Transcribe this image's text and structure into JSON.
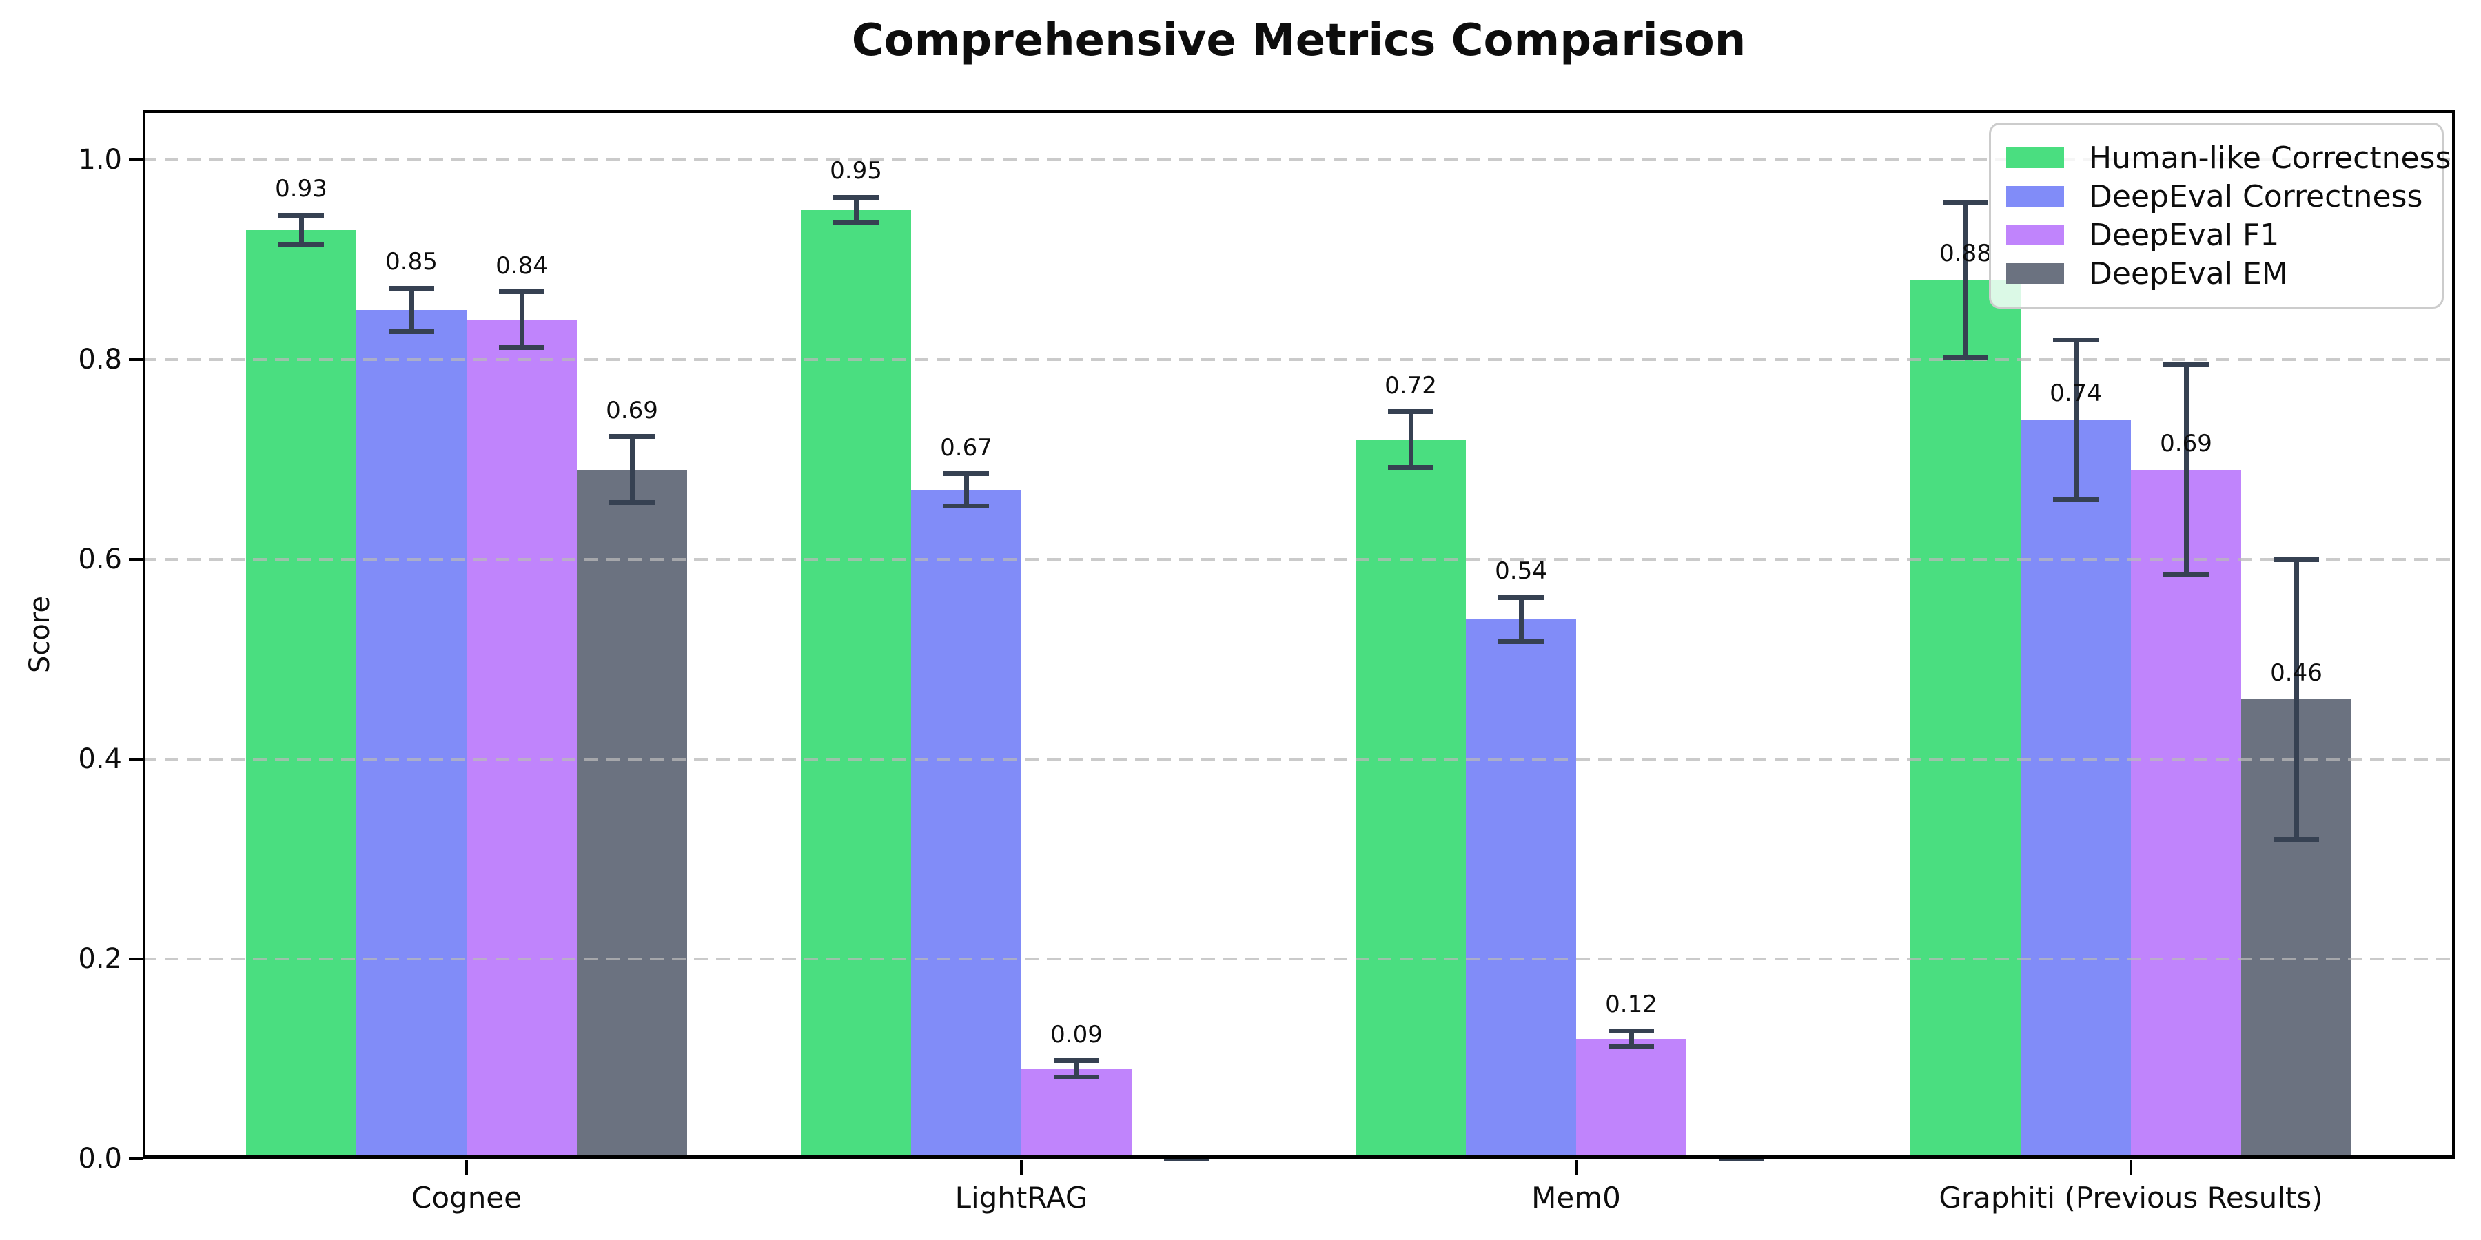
{
  "chart_data": {
    "type": "bar",
    "title": "Comprehensive Metrics Comparison",
    "ylabel": "Score",
    "xlabel": "",
    "categories": [
      "Cognee",
      "LightRAG",
      "Mem0",
      "Graphiti (Previous Results)"
    ],
    "series": [
      {
        "name": "Human-like Correctness",
        "color": "#4ade80",
        "values": [
          0.93,
          0.95,
          0.72,
          0.88
        ],
        "errors": [
          0.015,
          0.013,
          0.028,
          0.077
        ],
        "labels": [
          "0.93",
          "0.95",
          "0.72",
          "0.88"
        ]
      },
      {
        "name": "DeepEval Correctness",
        "color": "#818cf8",
        "values": [
          0.85,
          0.67,
          0.54,
          0.74
        ],
        "errors": [
          0.022,
          0.016,
          0.022,
          0.08
        ],
        "labels": [
          "0.85",
          "0.67",
          "0.54",
          "0.74"
        ]
      },
      {
        "name": "DeepEval F1",
        "color": "#c084fc",
        "values": [
          0.84,
          0.09,
          0.12,
          0.69
        ],
        "errors": [
          0.028,
          0.008,
          0.008,
          0.105
        ],
        "labels": [
          "0.84",
          "0.09",
          "0.12",
          "0.69"
        ]
      },
      {
        "name": "DeepEval EM",
        "color": "#6b7280",
        "values": [
          0.69,
          0.0,
          0.0,
          0.46
        ],
        "errors": [
          0.033,
          0.0,
          0.0,
          0.14
        ],
        "labels": [
          "0.69",
          "",
          "",
          "0.46"
        ]
      }
    ],
    "yticks": [
      "0.0",
      "0.2",
      "0.4",
      "0.6",
      "0.8",
      "1.0"
    ],
    "ytick_values": [
      0.0,
      0.2,
      0.4,
      0.6,
      0.8,
      1.0
    ],
    "ylim": [
      0,
      1.05
    ],
    "grid": "horizontal-dashed",
    "legend_position": "upper-right",
    "error_bar_color": "#364152",
    "background_color": "#ffffff"
  }
}
